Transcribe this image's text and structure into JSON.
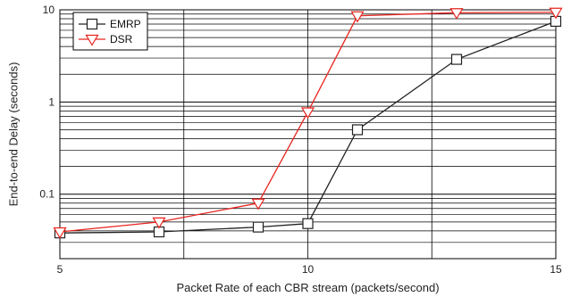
{
  "chart_data": {
    "type": "line",
    "xlabel": "Packet Rate of each CBR stream (packets/second)",
    "ylabel": "End-to-end Delay (seconds)",
    "xlim": [
      5,
      15
    ],
    "ylim": [
      0.02,
      10
    ],
    "yscale": "log",
    "x_ticks": [
      5,
      10,
      15
    ],
    "y_ticks": [
      {
        "value": 0.1,
        "label": "0.1"
      },
      {
        "value": 1,
        "label": "1"
      },
      {
        "value": 10,
        "label": "10"
      }
    ],
    "grid": true,
    "legend_position": "top-left",
    "series": [
      {
        "name": "EMRP",
        "color": "#222222",
        "marker": "square",
        "x": [
          5,
          7,
          9,
          10,
          11,
          13,
          15
        ],
        "y": [
          0.038,
          0.039,
          0.044,
          0.048,
          0.5,
          2.9,
          7.5
        ]
      },
      {
        "name": "DSR",
        "color": "#e8241f",
        "marker": "triangle-down",
        "x": [
          5,
          7,
          9,
          10,
          11,
          13,
          15
        ],
        "y": [
          0.039,
          0.05,
          0.08,
          0.78,
          8.6,
          9.3,
          9.4
        ]
      }
    ]
  }
}
